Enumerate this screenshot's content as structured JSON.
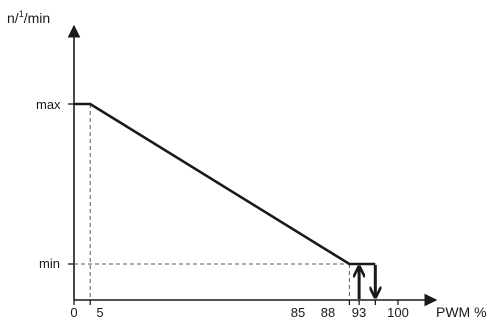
{
  "chart_data": {
    "type": "line",
    "ylabel_prefix": "n/",
    "ylabel_superscript": "1",
    "ylabel_suffix": "/min",
    "xlabel": "PWM %",
    "xlim": [
      0,
      100
    ],
    "x_ticks": [
      0,
      5,
      85,
      88,
      93,
      100
    ],
    "x_tick_labels": [
      "0",
      "5",
      "85",
      "88",
      "93",
      "100"
    ],
    "y_levels": [
      "max",
      "min"
    ],
    "series": [
      {
        "points": [
          {
            "x": 0,
            "y": "max"
          },
          {
            "x": 5,
            "y": "max"
          },
          {
            "x": 85,
            "y": "min"
          },
          {
            "x": 93,
            "y": "min"
          }
        ]
      }
    ],
    "hysteresis": {
      "up_arrow_x": 88,
      "down_arrow_x": 93
    },
    "guide_lines": [
      {
        "from": {
          "x": 5,
          "y": "max"
        },
        "to": {
          "x": 5,
          "y": 0
        }
      },
      {
        "from": {
          "x": 0,
          "y": "min"
        },
        "to": {
          "x": 85,
          "y": "min"
        }
      },
      {
        "from": {
          "x": 85,
          "y": "min"
        },
        "to": {
          "x": 85,
          "y": 0
        }
      }
    ],
    "grid": false,
    "line_color": "#1a1a1a"
  }
}
